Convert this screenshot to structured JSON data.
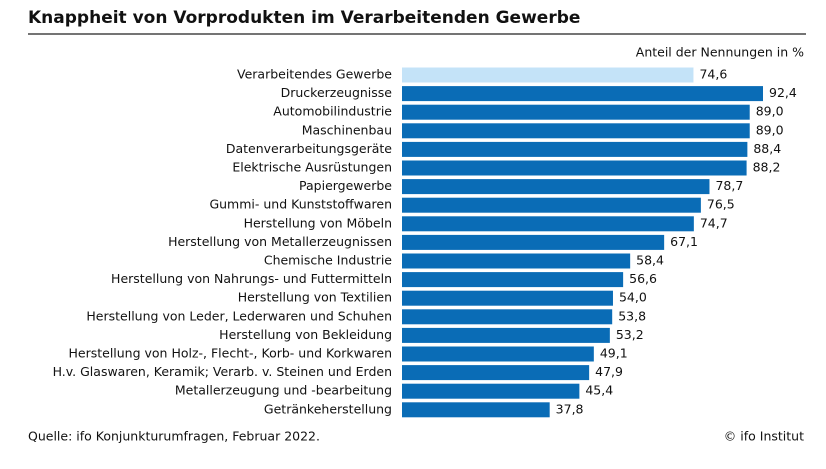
{
  "chart_data": {
    "type": "hbar",
    "title": "Knappheit von Vorprodukten im Verarbeitenden Gewerbe",
    "subtitle": "Anteil der Nennungen in %",
    "categories": [
      "Verarbeitendes Gewerbe",
      "Druckerzeugnisse",
      "Automobilindustrie",
      "Maschinenbau",
      "Datenverarbeitungsgeräte",
      "Elektrische Ausrüstungen",
      "Papiergewerbe",
      "Gummi- und Kunststoffwaren",
      "Herstellung von Möbeln",
      "Herstellung von Metallerzeugnissen",
      "Chemische Industrie",
      "Herstellung von Nahrungs- und Futtermitteln",
      "Herstellung von Textilien",
      "Herstellung von Leder, Lederwaren und Schuhen",
      "Herstellung von Bekleidung",
      "Herstellung von Holz-, Flecht-, Korb- und Korkwaren",
      "H.v. Glaswaren, Keramik; Verarb. v. Steinen und Erden",
      "Metallerzeugung und -bearbeitung",
      "Getränkeherstellung"
    ],
    "values": [
      74.6,
      92.4,
      89.0,
      89.0,
      88.4,
      88.2,
      78.7,
      76.5,
      74.7,
      67.1,
      58.4,
      56.6,
      54.0,
      53.8,
      53.2,
      49.1,
      47.9,
      45.4,
      37.8
    ],
    "value_labels": [
      "74,6",
      "92,4",
      "89,0",
      "89,0",
      "88,4",
      "88,2",
      "78,7",
      "76,5",
      "74,7",
      "67,1",
      "58,4",
      "56,6",
      "54,0",
      "53,8",
      "53,2",
      "49,1",
      "47,9",
      "45,4",
      "37,8"
    ],
    "colors": [
      "#c4e3f8",
      "#0a6cb6",
      "#0a6cb6",
      "#0a6cb6",
      "#0a6cb6",
      "#0a6cb6",
      "#0a6cb6",
      "#0a6cb6",
      "#0a6cb6",
      "#0a6cb6",
      "#0a6cb6",
      "#0a6cb6",
      "#0a6cb6",
      "#0a6cb6",
      "#0a6cb6",
      "#0a6cb6",
      "#0a6cb6",
      "#0a6cb6",
      "#0a6cb6"
    ],
    "source": "Quelle: ifo Konjunkturumfragen, Februar 2022.",
    "credit": "© ifo Institut"
  }
}
